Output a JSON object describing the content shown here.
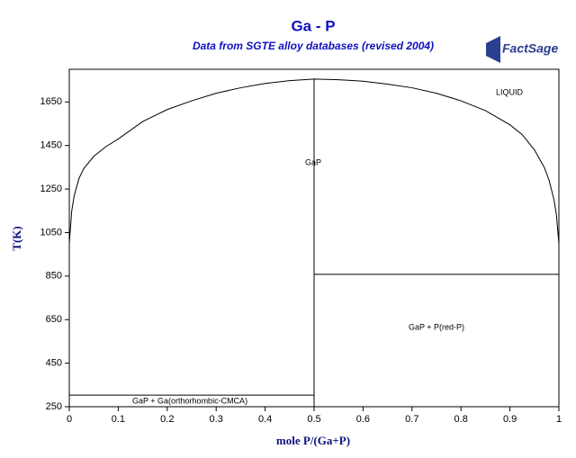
{
  "chart_data": {
    "type": "line",
    "title": "Ga - P",
    "subtitle": "Data from SGTE alloy databases (revised 2004)",
    "logo": "FactSage",
    "x_label": "mole P/(Ga+P)",
    "y_label": "T(K)",
    "xlim": [
      0,
      1
    ],
    "ylim": [
      250,
      1800
    ],
    "xticks": [
      0,
      0.1,
      0.2,
      0.3,
      0.4,
      0.5,
      0.6,
      0.7,
      0.8,
      0.9,
      1
    ],
    "yticks": [
      250,
      450,
      650,
      850,
      1050,
      1250,
      1450,
      1650
    ],
    "series": [
      {
        "color": "#000000",
        "x": [
          0,
          0.005,
          0.01,
          0.02,
          0.03,
          0.05,
          0.075,
          0.1,
          0.15,
          0.2,
          0.25,
          0.3,
          0.35,
          0.4,
          0.45,
          0.5,
          0.55,
          0.6,
          0.65,
          0.7,
          0.75,
          0.8,
          0.85,
          0.9,
          0.925,
          0.95,
          0.97,
          0.98,
          0.99,
          0.995,
          1
        ],
        "values": [
          1000,
          1150,
          1220,
          1300,
          1345,
          1400,
          1445,
          1480,
          1560,
          1615,
          1655,
          1690,
          1715,
          1735,
          1748,
          1755,
          1752,
          1745,
          1732,
          1715,
          1690,
          1655,
          1610,
          1545,
          1500,
          1430,
          1350,
          1290,
          1200,
          1130,
          1000
        ]
      },
      {
        "color": "#000000",
        "x": [
          0.5,
          0.5
        ],
        "values": [
          250,
          1755
        ]
      },
      {
        "color": "#000000",
        "x": [
          0.5,
          1
        ],
        "values": [
          858,
          858
        ]
      },
      {
        "color": "#000000",
        "x": [
          0,
          0.5
        ],
        "values": [
          303,
          303
        ]
      }
    ],
    "annotations": [
      "LIQUID",
      "GaP",
      "GaP + P(red-P)",
      "GaP + Ga(orthorhombic-CMCA)"
    ]
  }
}
